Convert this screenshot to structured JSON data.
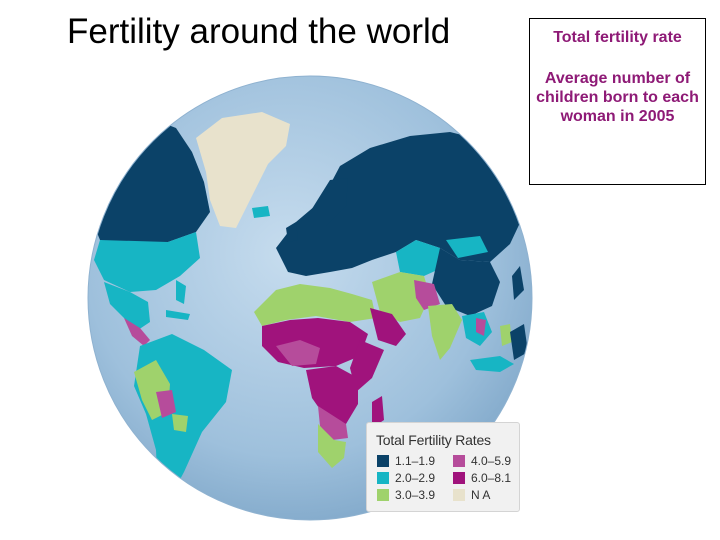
{
  "title": "Fertility around the world",
  "info": {
    "heading": "Total fertility rate",
    "description": "Average number of children born to each woman in 2005"
  },
  "colors": {
    "ocean": "#9ec0dc",
    "tfr_1_1_to_1_9": "#0b4268",
    "tfr_2_0_to_2_9": "#17b5c4",
    "tfr_3_0_to_3_9": "#9fd26c",
    "tfr_4_0_to_5_9": "#b64c9b",
    "tfr_6_0_to_8_1": "#a0137c",
    "no_data": "#e8e2cc",
    "accent_text": "#8e1a76"
  },
  "legend": {
    "title": "Total Fertility Rates",
    "items": [
      {
        "label": "1.1–1.9",
        "color": "#0b4268"
      },
      {
        "label": "2.0–2.9",
        "color": "#17b5c4"
      },
      {
        "label": "3.0–3.9",
        "color": "#9fd26c"
      },
      {
        "label": "4.0–5.9",
        "color": "#b64c9b"
      },
      {
        "label": "6.0–8.1",
        "color": "#a0137c"
      },
      {
        "label": "N A",
        "color": "#e8e2cc"
      }
    ]
  }
}
